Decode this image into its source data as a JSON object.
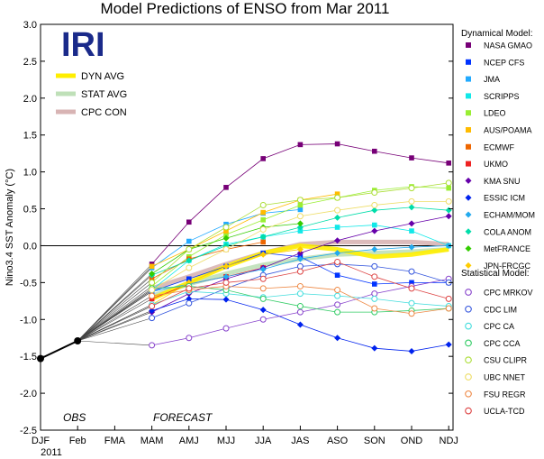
{
  "chart_data": {
    "type": "line",
    "title": "Model Predictions of ENSO from Mar 2011",
    "ylabel": "Nino3.4 SST Anomaly (°C)",
    "xlabel": "",
    "logo": "IRI",
    "categories": [
      "DJF",
      "Feb",
      "FMA",
      "MAM",
      "AMJ",
      "MJJ",
      "JJA",
      "JAS",
      "ASO",
      "SON",
      "OND",
      "NDJ"
    ],
    "year_label": "2011",
    "ylim": [
      -2.5,
      3.0
    ],
    "yticks": [
      "3.0",
      "2.5",
      "2.0",
      "1.5",
      "1.0",
      "0.5",
      "0.0",
      "-0.5",
      "-1.0",
      "-1.5",
      "-2.0",
      "-2.5"
    ],
    "obs_label": "OBS",
    "forecast_label": "FORECAST",
    "observed": [
      -1.53,
      -1.29
    ],
    "averages": [
      {
        "name": "DYN AVG",
        "color": "#ffee00",
        "values": [
          -0.72,
          -0.5,
          -0.28,
          -0.1,
          0.0,
          -0.05,
          -0.15,
          -0.12,
          -0.05
        ]
      },
      {
        "name": "STAT AVG",
        "color": "#bfe0b8",
        "values": [
          -0.68,
          -0.52,
          -0.38,
          -0.26,
          -0.18,
          -0.12,
          -0.1,
          -0.08,
          -0.05
        ]
      },
      {
        "name": "CPC CON",
        "color": "#d8b4b4",
        "values": [
          -0.58,
          -0.42,
          -0.25,
          -0.1,
          0.02,
          0.05,
          0.05,
          0.05,
          0.02
        ]
      }
    ],
    "dynamical_heading": "Dynamical Model:",
    "statistical_heading": "Statistical Model:",
    "dynamical_series": [
      {
        "name": "NASA GMAO",
        "color": "#770077",
        "values": [
          -0.25,
          0.32,
          0.79,
          1.18,
          1.37,
          1.38,
          1.28,
          1.19,
          1.12
        ]
      },
      {
        "name": "NCEP CFS",
        "color": "#0033ff",
        "values": [
          -0.62,
          -0.45,
          -0.28,
          -0.1,
          -0.15,
          -0.4,
          -0.52,
          -0.5,
          -0.5
        ]
      },
      {
        "name": "JMA",
        "color": "#22aaff",
        "values": [
          -0.3,
          0.06,
          0.29,
          0.44,
          0.49,
          null,
          null,
          null,
          null
        ]
      },
      {
        "name": "SCRIPPS",
        "color": "#11e8e8",
        "values": [
          -0.6,
          -0.2,
          0.02,
          0.12,
          0.2,
          0.25,
          0.28,
          0.2,
          0.0
        ]
      },
      {
        "name": "LDEO",
        "color": "#99ee33",
        "values": [
          -0.55,
          -0.15,
          0.15,
          0.35,
          0.55,
          0.65,
          0.75,
          0.8,
          0.78
        ]
      },
      {
        "name": "AUS/POAMA",
        "color": "#ffbb00",
        "values": [
          -0.28,
          -0.05,
          0.2,
          0.45,
          0.62,
          0.7,
          null,
          null,
          null
        ]
      },
      {
        "name": "ECMWF",
        "color": "#ee6600",
        "values": [
          -0.45,
          -0.18,
          -0.05,
          0.05,
          null,
          null,
          null,
          null,
          null
        ]
      },
      {
        "name": "UKMO",
        "color": "#ee2222",
        "values": [
          -0.72,
          -0.52,
          -0.42,
          -0.3,
          null,
          null,
          null,
          null,
          null
        ]
      },
      {
        "name": "KMA SNU",
        "color": "#6600aa",
        "values": [
          -0.9,
          -0.65,
          -0.45,
          -0.3,
          -0.1,
          0.07,
          0.2,
          0.3,
          0.4
        ]
      },
      {
        "name": "ESSIC ICM",
        "color": "#0022ee",
        "values": [
          -0.88,
          -0.72,
          -0.73,
          -0.87,
          -1.07,
          -1.25,
          -1.39,
          -1.43,
          -1.34
        ]
      },
      {
        "name": "ECHAM/MOM",
        "color": "#22aaee",
        "values": [
          -0.62,
          -0.52,
          -0.42,
          -0.32,
          -0.18,
          -0.1,
          -0.05,
          -0.02,
          0.0
        ]
      },
      {
        "name": "COLA ANOM",
        "color": "#00ddaa",
        "values": [
          -0.4,
          -0.2,
          0.0,
          0.12,
          0.25,
          0.38,
          0.48,
          0.52,
          0.48
        ]
      },
      {
        "name": "MetFRANCE",
        "color": "#33cc00",
        "values": [
          -0.38,
          -0.05,
          0.1,
          0.25,
          0.3,
          null,
          null,
          null,
          null
        ]
      },
      {
        "name": "JPN-FRCGC",
        "color": "#ffcc00",
        "values": [
          -0.8,
          -0.5,
          -0.28,
          -0.12,
          -0.05,
          null,
          null,
          null,
          null
        ]
      }
    ],
    "statistical_series": [
      {
        "name": "CPC MRKOV",
        "color": "#8844cc",
        "values": [
          -1.35,
          -1.25,
          -1.12,
          -1.0,
          -0.9,
          -0.8,
          -0.65,
          -0.55,
          -0.45
        ]
      },
      {
        "name": "CDC LIM",
        "color": "#3355dd",
        "values": [
          -0.98,
          -0.78,
          -0.58,
          -0.4,
          -0.28,
          -0.25,
          -0.28,
          -0.35,
          -0.5
        ]
      },
      {
        "name": "CPC CA",
        "color": "#44dddd",
        "values": [
          -0.8,
          -0.62,
          -0.65,
          -0.7,
          -0.65,
          -0.68,
          -0.72,
          -0.78,
          -0.82
        ]
      },
      {
        "name": "CPC CCA",
        "color": "#33cc66",
        "values": [
          -0.58,
          -0.55,
          -0.6,
          -0.72,
          -0.82,
          -0.9,
          -0.9,
          -0.88,
          -0.85
        ]
      },
      {
        "name": "CSU CLIPR",
        "color": "#aadd33",
        "values": [
          -0.5,
          -0.05,
          0.25,
          0.55,
          0.62,
          0.65,
          0.72,
          0.78,
          0.85
        ]
      },
      {
        "name": "UBC NNET",
        "color": "#eedd66",
        "values": [
          -0.6,
          -0.3,
          -0.05,
          0.22,
          0.4,
          0.48,
          0.55,
          0.6,
          0.6
        ]
      },
      {
        "name": "FSU REGR",
        "color": "#ee8844",
        "values": [
          -0.68,
          -0.6,
          -0.55,
          -0.58,
          -0.55,
          -0.6,
          -0.85,
          -0.92,
          -0.85
        ]
      },
      {
        "name": "UCLA-TCD",
        "color": "#dd4444",
        "values": [
          -0.82,
          -0.58,
          -0.5,
          -0.45,
          -0.35,
          -0.22,
          -0.42,
          -0.58,
          -0.72
        ]
      }
    ]
  }
}
